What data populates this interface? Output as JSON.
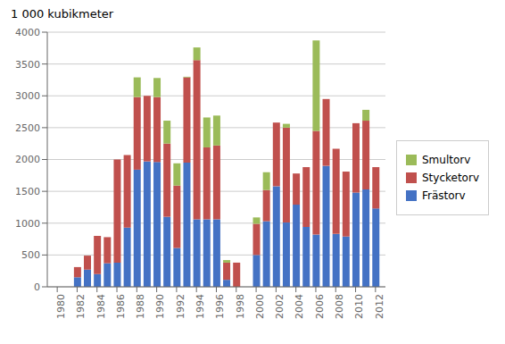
{
  "chart_data": {
    "type": "bar",
    "title": "1 000 kubikmeter",
    "stacked": true,
    "grid": true,
    "legend": "right",
    "x": [
      1980,
      1981,
      1982,
      1983,
      1984,
      1985,
      1986,
      1987,
      1988,
      1989,
      1990,
      1991,
      1992,
      1993,
      1994,
      1995,
      1996,
      1997,
      1998,
      1999,
      2000,
      2001,
      2002,
      2003,
      2004,
      2005,
      2006,
      2007,
      2008,
      2009,
      2010,
      2011,
      2012
    ],
    "xlim": [
      1979,
      2013
    ],
    "xticks": [
      1980,
      1982,
      1984,
      1986,
      1988,
      1990,
      1992,
      1994,
      1996,
      1998,
      2000,
      2002,
      2004,
      2006,
      2008,
      2010,
      2012
    ],
    "ylim": [
      0,
      4000
    ],
    "yticks": [
      0,
      500,
      1000,
      1500,
      2000,
      2500,
      3000,
      3500,
      4000
    ],
    "series": [
      {
        "name": "Frästorv",
        "color": "#4472C4",
        "values": [
          0,
          0,
          150,
          270,
          200,
          370,
          380,
          930,
          1840,
          1970,
          1960,
          1100,
          610,
          1950,
          1060,
          1060,
          1060,
          110,
          0,
          0,
          500,
          1030,
          1580,
          1010,
          1290,
          940,
          820,
          1900,
          830,
          790,
          1480,
          1530,
          1230
        ]
      },
      {
        "name": "Stycketorv",
        "color": "#C0504D",
        "values": [
          0,
          0,
          160,
          220,
          600,
          410,
          1620,
          1140,
          1140,
          1030,
          1020,
          1150,
          980,
          1340,
          2500,
          1130,
          1160,
          270,
          380,
          0,
          490,
          490,
          1000,
          1490,
          490,
          940,
          1630,
          1050,
          1340,
          1020,
          1090,
          1080,
          650
        ]
      },
      {
        "name": "Smultorv",
        "color": "#9BBB59",
        "values": [
          0,
          0,
          0,
          0,
          0,
          0,
          0,
          0,
          310,
          0,
          300,
          360,
          350,
          10,
          200,
          470,
          470,
          40,
          0,
          0,
          100,
          280,
          0,
          60,
          0,
          0,
          1420,
          0,
          0,
          0,
          0,
          170,
          0
        ]
      }
    ]
  }
}
